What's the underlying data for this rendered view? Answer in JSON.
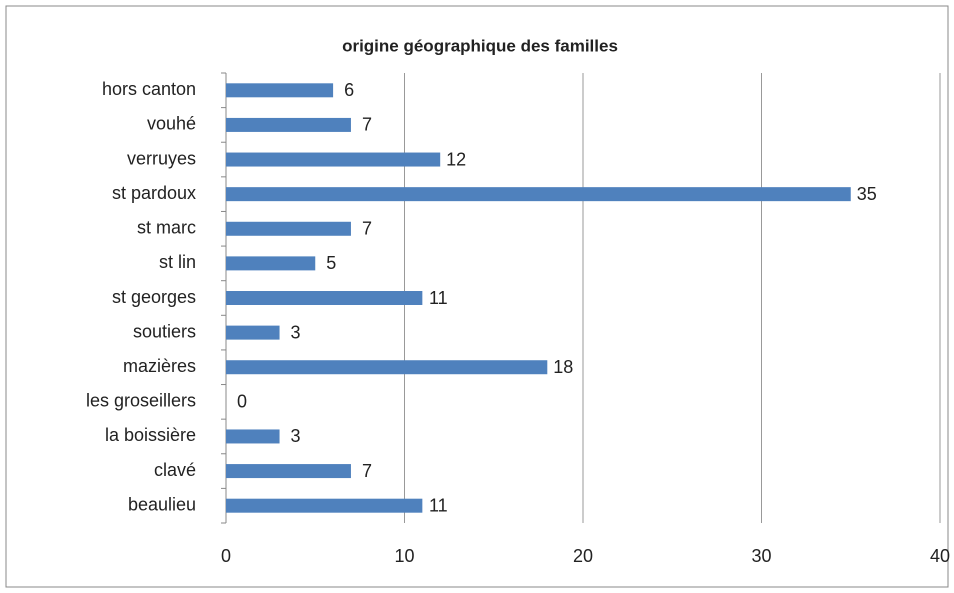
{
  "chart_data": {
    "type": "bar",
    "orientation": "horizontal",
    "title": "origine géographique des familles",
    "categories": [
      "hors canton",
      "vouhé",
      "verruyes",
      "st pardoux",
      "st marc",
      "st lin",
      "st georges",
      "soutiers",
      "mazières",
      "les groseillers",
      "la boissière",
      "clavé",
      "beaulieu"
    ],
    "values": [
      6,
      7,
      12,
      35,
      7,
      5,
      11,
      3,
      18,
      0,
      3,
      7,
      11
    ],
    "color": "#4f81bd",
    "xlim": [
      0,
      40
    ],
    "xticks": [
      0,
      10,
      20,
      30,
      40
    ],
    "grid": true
  }
}
